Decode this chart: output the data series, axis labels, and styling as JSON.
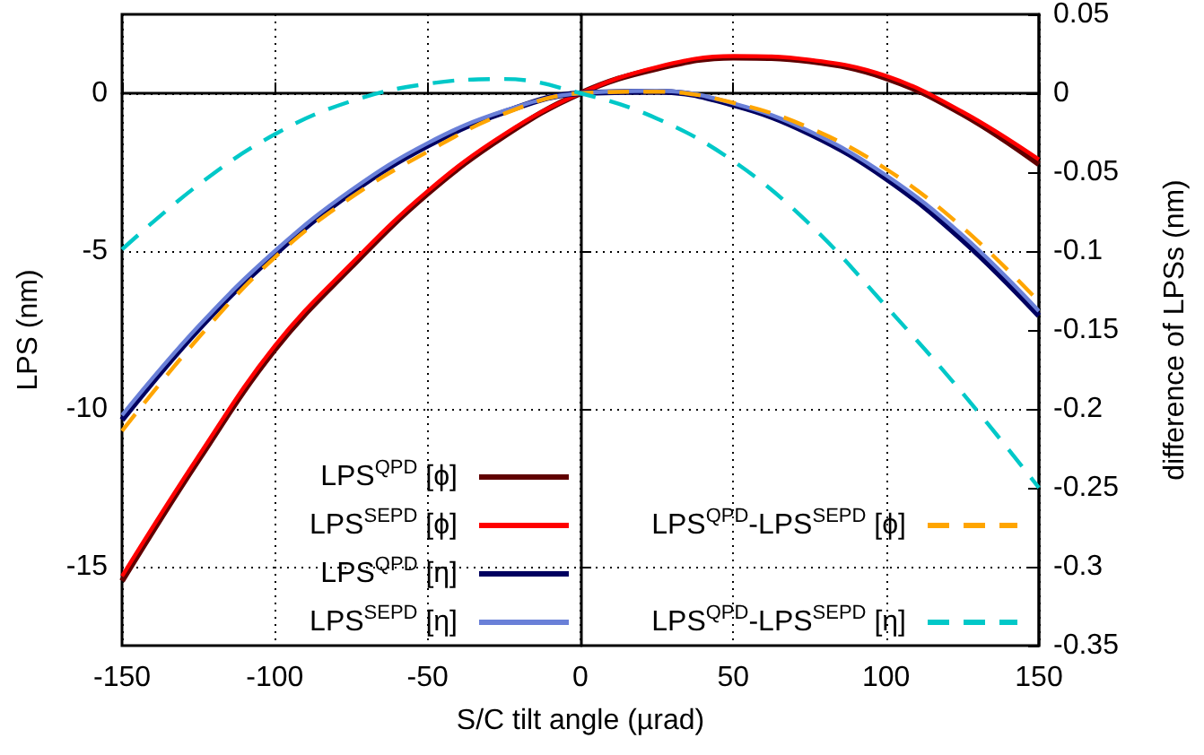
{
  "chart_data": {
    "type": "line",
    "xlabel": "S/C tilt angle (µrad)",
    "ylabel": "LPS (nm)",
    "y2label": "difference of LPSs (nm)",
    "x": [
      -150,
      -125,
      -100,
      -75,
      -50,
      -25,
      0,
      25,
      50,
      75,
      100,
      125,
      150
    ],
    "xlim": [
      -150,
      150
    ],
    "xticks": [
      -150,
      -100,
      -50,
      0,
      50,
      100,
      150
    ],
    "ylim": [
      -17.5,
      2.5
    ],
    "yticks": [
      -15,
      -10,
      -5,
      0
    ],
    "y2lim": [
      -0.35,
      0.05
    ],
    "y2ticks": [
      -0.35,
      -0.3,
      -0.25,
      -0.2,
      -0.15,
      -0.1,
      -0.05,
      0,
      0.05
    ],
    "grid": true,
    "legend": "bottom",
    "marker": "none",
    "series": [
      {
        "name": "LPS$^{QPD}$ [ϕ]",
        "color": "#600000",
        "line_style": "solid",
        "values": [
          -15.45,
          -11.62,
          -8.12,
          -5.5,
          -3.18,
          -1.36,
          0,
          0.78,
          1.13,
          1.01,
          0.48,
          -0.66,
          -2.25
        ]
      },
      {
        "name": "LPS$^{SEPD}$ [ϕ]",
        "color": "#ff0000",
        "line_style": "solid",
        "values": [
          -15.3,
          -11.5,
          -8.0,
          -5.4,
          -3.1,
          -1.3,
          0,
          0.83,
          1.18,
          1.06,
          0.55,
          -0.59,
          -2.1
        ]
      },
      {
        "name": "LPS$^{QPD}$ [η]",
        "color": "#000060",
        "line_style": "solid",
        "values": [
          -10.35,
          -7.48,
          -5.1,
          -3.15,
          -1.66,
          -0.6,
          0,
          0.05,
          -0.37,
          -1.28,
          -2.7,
          -4.65,
          -7.05
        ]
      },
      {
        "name": "LPS$^{SEPD}$ [η]",
        "color": "#6a80d8",
        "line_style": "solid",
        "values": [
          -10.2,
          -7.38,
          -5.0,
          -3.07,
          -1.58,
          -0.56,
          0,
          0.08,
          -0.32,
          -1.21,
          -2.6,
          -4.5,
          -6.9
        ]
      },
      {
        "name": "LPS$^{QPD}$-LPS$^{SEPD}$ [ϕ]",
        "color": "#ffa500",
        "line_style": "dashed",
        "axis": "y2",
        "values": [
          -0.214,
          -0.155,
          -0.104,
          -0.066,
          -0.037,
          -0.013,
          0,
          0.001,
          -0.006,
          -0.022,
          -0.048,
          -0.085,
          -0.132
        ]
      },
      {
        "name": "LPS$^{QPD}$-LPS$^{SEPD}$ [η]",
        "color": "#00c8c8",
        "line_style": "dashed",
        "axis": "y2",
        "values": [
          -0.099,
          -0.058,
          -0.026,
          -0.005,
          0.006,
          0.009,
          0,
          -0.016,
          -0.043,
          -0.083,
          -0.135,
          -0.19,
          -0.25
        ]
      }
    ]
  }
}
